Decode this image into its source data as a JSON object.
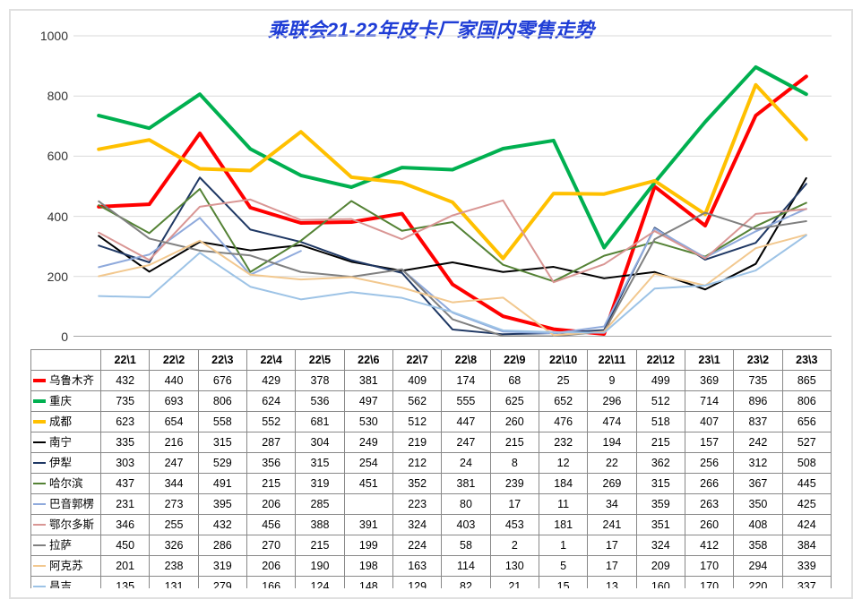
{
  "chart": {
    "title": "乘联会21-22年皮卡厂家国内零售走势",
    "title_fontsize": 22,
    "title_color": "#1f3dd6",
    "type": "line",
    "background": "#ffffff",
    "grid_color": "#d9d9d9",
    "axis_color": "#888888",
    "tick_color": "#d9d9d9",
    "line_width_bold": 4,
    "line_width_thin": 2,
    "ylim": [
      0,
      1000
    ],
    "yticks": [
      0,
      200,
      400,
      600,
      800,
      1000
    ],
    "tick_fontsize": 14,
    "categories": [
      "22\\1",
      "22\\2",
      "22\\3",
      "22\\4",
      "22\\5",
      "22\\6",
      "22\\7",
      "22\\8",
      "22\\9",
      "22\\10",
      "22\\11",
      "22\\12",
      "23\\1",
      "23\\2",
      "23\\3"
    ],
    "series": [
      {
        "name": "乌鲁木齐",
        "color": "#ff0000",
        "weight": "bold",
        "data": [
          432,
          440,
          676,
          429,
          378,
          381,
          409,
          174,
          68,
          25,
          9,
          499,
          369,
          735,
          865
        ]
      },
      {
        "name": "重庆",
        "color": "#00b050",
        "weight": "bold",
        "data": [
          735,
          693,
          806,
          624,
          536,
          497,
          562,
          555,
          625,
          652,
          296,
          512,
          714,
          896,
          806
        ]
      },
      {
        "name": "成都",
        "color": "#ffc000",
        "weight": "bold",
        "data": [
          623,
          654,
          558,
          552,
          681,
          530,
          512,
          447,
          260,
          476,
          474,
          518,
          407,
          837,
          656
        ]
      },
      {
        "name": "南宁",
        "color": "#000000",
        "weight": "thin",
        "data": [
          335,
          216,
          315,
          287,
          304,
          249,
          219,
          247,
          215,
          232,
          194,
          215,
          157,
          242,
          527
        ]
      },
      {
        "name": "伊犁",
        "color": "#1f3864",
        "weight": "thin",
        "data": [
          303,
          247,
          529,
          356,
          315,
          254,
          212,
          24,
          8,
          12,
          22,
          362,
          256,
          312,
          508
        ]
      },
      {
        "name": "哈尔滨",
        "color": "#548235",
        "weight": "thin",
        "data": [
          437,
          344,
          491,
          215,
          319,
          451,
          352,
          381,
          239,
          184,
          269,
          315,
          266,
          367,
          445
        ]
      },
      {
        "name": "巴音郭楞",
        "color": "#8faadc",
        "weight": "thin",
        "data": [
          231,
          273,
          395,
          206,
          285,
          null,
          223,
          80,
          17,
          11,
          34,
          359,
          263,
          350,
          425
        ]
      },
      {
        "name": "鄂尔多斯",
        "color": "#d99694",
        "weight": "thin",
        "data": [
          346,
          255,
          432,
          456,
          388,
          391,
          324,
          403,
          453,
          181,
          241,
          351,
          260,
          408,
          424
        ]
      },
      {
        "name": "拉萨",
        "color": "#808080",
        "weight": "thin",
        "data": [
          450,
          326,
          286,
          270,
          215,
          199,
          224,
          58,
          2,
          1,
          17,
          324,
          412,
          358,
          384
        ]
      },
      {
        "name": "阿克苏",
        "color": "#f2c88f",
        "weight": "thin",
        "data": [
          201,
          238,
          319,
          206,
          190,
          198,
          163,
          114,
          130,
          5,
          17,
          209,
          170,
          294,
          339
        ]
      },
      {
        "name": "昌吉",
        "color": "#9dc3e6",
        "weight": "thin",
        "data": [
          135,
          131,
          279,
          166,
          124,
          148,
          129,
          82,
          21,
          15,
          13,
          160,
          170,
          220,
          337
        ]
      }
    ]
  }
}
